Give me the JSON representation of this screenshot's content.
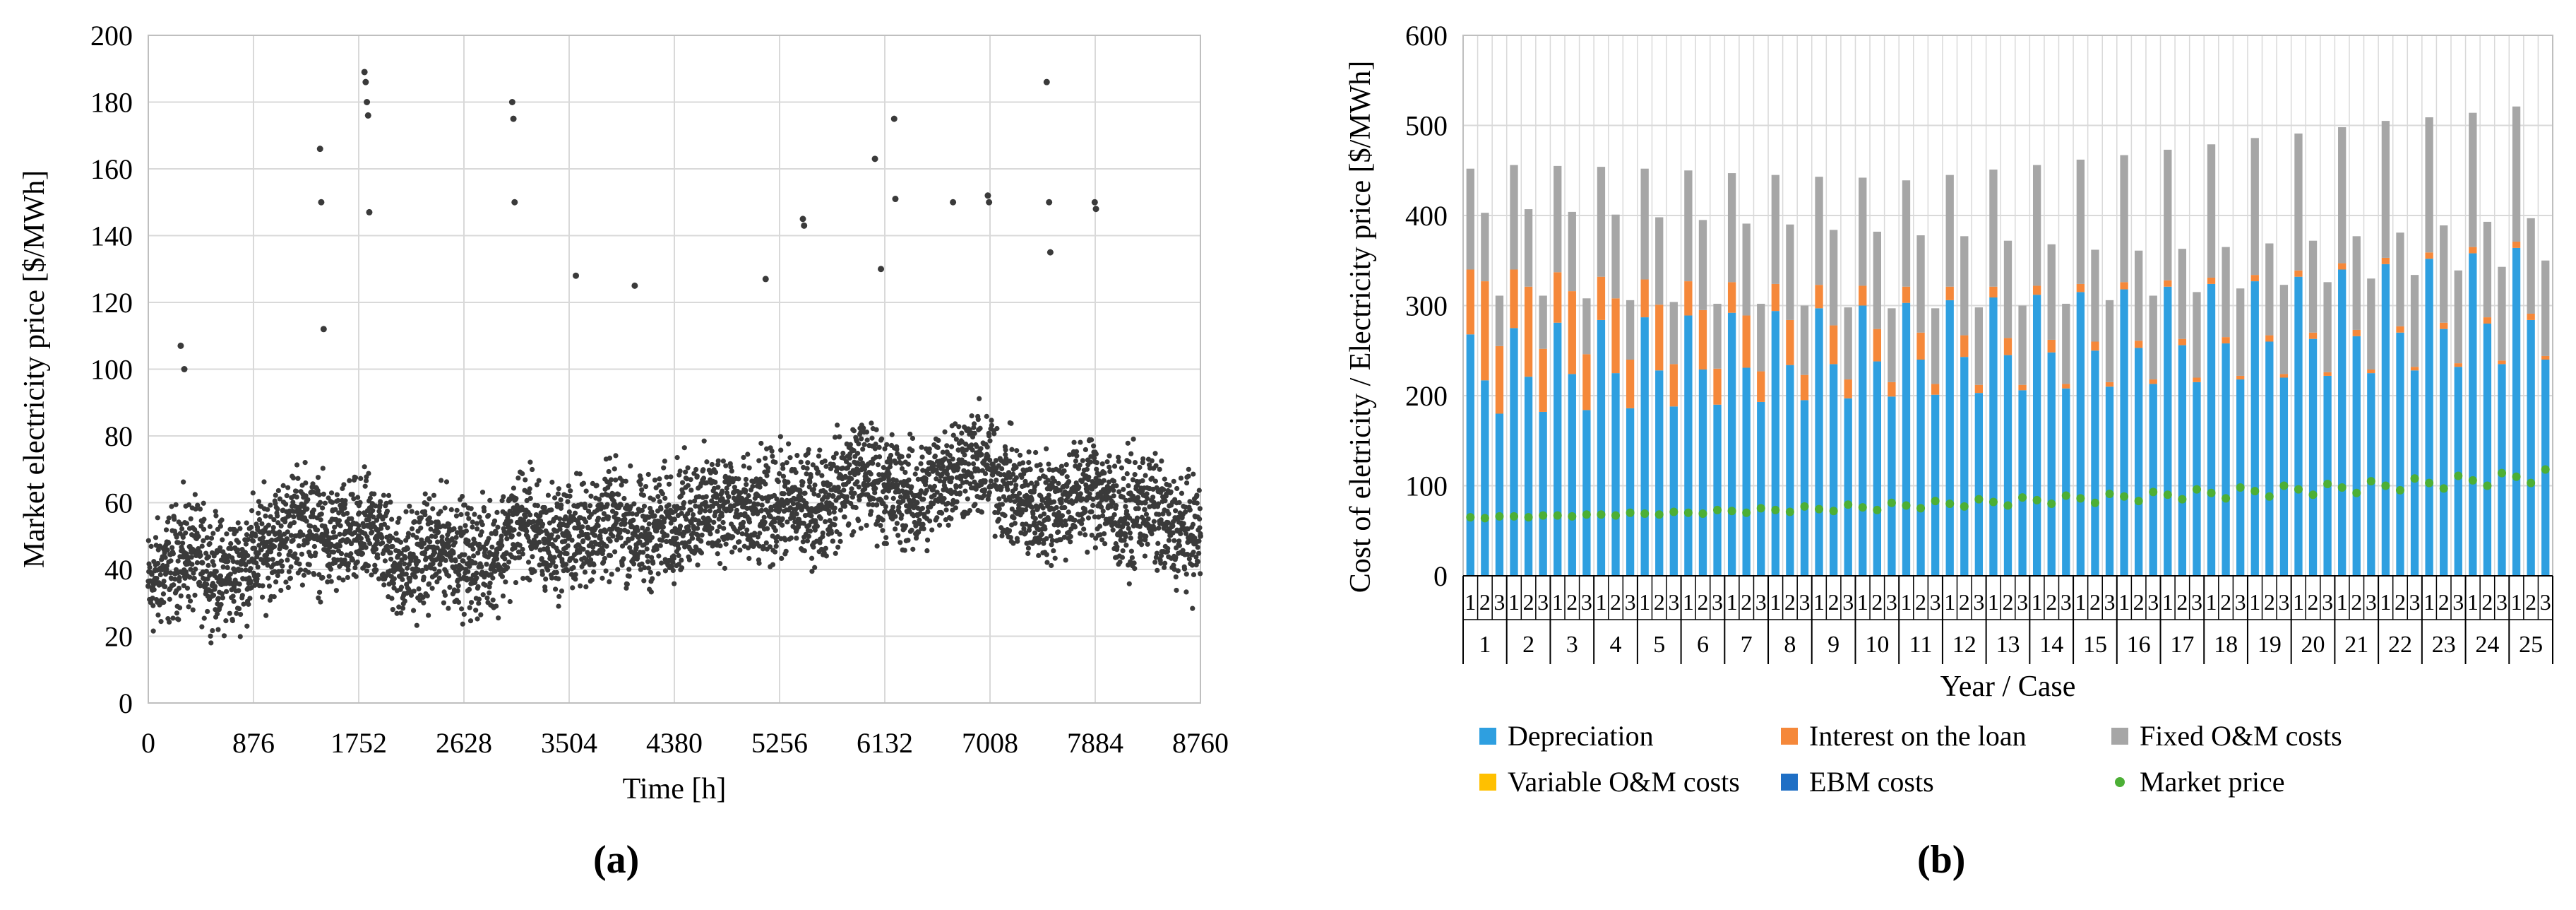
{
  "chart_data": [
    {
      "type": "scatter",
      "panel_label": "(a)",
      "xlabel": "Time [h]",
      "ylabel": "Market electricity price [$/MWh]",
      "xlim": [
        0,
        8760
      ],
      "ylim": [
        0,
        200
      ],
      "x_ticks": [
        0,
        876,
        1752,
        2628,
        3504,
        4380,
        5256,
        6132,
        7008,
        7884,
        8760
      ],
      "y_ticks": [
        0,
        20,
        40,
        60,
        80,
        100,
        120,
        140,
        160,
        180,
        200
      ],
      "grid": true,
      "point_color": "#3a3a3a",
      "sampled_points": {
        "x": [
          0,
          150,
          300,
          450,
          600,
          750,
          900,
          1100,
          1300,
          1500,
          1752,
          1900,
          2100,
          2300,
          2500,
          2700,
          2900,
          3100,
          3300,
          3504,
          3700,
          3900,
          4100,
          4380,
          4600,
          4800,
          5000,
          5256,
          5500,
          5700,
          5900,
          6132,
          6400,
          6600,
          6800,
          7008,
          7200,
          7400,
          7600,
          7884,
          8100,
          8300,
          8500,
          8760
        ],
        "y": [
          35,
          40,
          45,
          42,
          38,
          40,
          45,
          50,
          55,
          48,
          50,
          52,
          40,
          45,
          47,
          42,
          45,
          55,
          48,
          50,
          52,
          55,
          50,
          55,
          58,
          60,
          55,
          60,
          58,
          62,
          70,
          65,
          60,
          68,
          72,
          70,
          62,
          58,
          60,
          65,
          55,
          60,
          52,
          50
        ]
      },
      "spike_points": {
        "x": [
          270,
          300,
          1430,
          1440,
          1460,
          1800,
          1810,
          1820,
          1830,
          1840,
          3030,
          3040,
          3050,
          3560,
          4050,
          5140,
          5450,
          5460,
          6050,
          6100,
          6210,
          6220,
          6700,
          6990,
          7000,
          7480,
          7500,
          7510,
          7880,
          7890
        ],
        "y": [
          107,
          100,
          166,
          150,
          112,
          189,
          186,
          180,
          176,
          147,
          180,
          175,
          150,
          128,
          125,
          127,
          145,
          143,
          163,
          130,
          175,
          151,
          150,
          152,
          150,
          186,
          150,
          135,
          150,
          148
        ]
      }
    },
    {
      "type": "bar",
      "stacked": true,
      "panel_label": "(b)",
      "xlabel": "Year / Case",
      "ylabel": "Cost of eletricity / Electricity price [$/MWh]",
      "ylim": [
        0,
        600
      ],
      "y_ticks": [
        0,
        100,
        200,
        300,
        400,
        500,
        600
      ],
      "grid": true,
      "years": [
        "1",
        "2",
        "3",
        "4",
        "5",
        "6",
        "7",
        "8",
        "9",
        "10",
        "11",
        "12",
        "13",
        "14",
        "15",
        "16",
        "17",
        "18",
        "19",
        "20",
        "21",
        "22",
        "23",
        "24",
        "25"
      ],
      "cases": [
        "1",
        "2",
        "3"
      ],
      "series": [
        {
          "name": "Depreciation",
          "color": "#2e9fe0",
          "case1": [
            268,
            275,
            281,
            284,
            287,
            289,
            292,
            294,
            297,
            300,
            303,
            306,
            309,
            312,
            315,
            318,
            321,
            324,
            327,
            332,
            340,
            346,
            352,
            358,
            364
          ],
          "case2": [
            217,
            221,
            224,
            225,
            228,
            229,
            231,
            234,
            235,
            238,
            240,
            243,
            245,
            248,
            250,
            253,
            256,
            258,
            260,
            263,
            266,
            270,
            274,
            280,
            284
          ],
          "case3": [
            180,
            182,
            184,
            186,
            188,
            190,
            193,
            195,
            197,
            199,
            201,
            203,
            206,
            208,
            210,
            213,
            215,
            218,
            220,
            222,
            225,
            228,
            232,
            235,
            240
          ]
        },
        {
          "name": "Interest on the loan",
          "color": "#f5883a",
          "case1": [
            72,
            65,
            56,
            48,
            42,
            38,
            34,
            30,
            26,
            22,
            18,
            15,
            12,
            10,
            9,
            8,
            7,
            7,
            7,
            7,
            7,
            7,
            7,
            7,
            7
          ],
          "case2": [
            110,
            100,
            92,
            83,
            73,
            66,
            58,
            50,
            43,
            36,
            30,
            24,
            19,
            14,
            10,
            8,
            7,
            7,
            7,
            7,
            7,
            7,
            7,
            7,
            7
          ],
          "case3": [
            75,
            70,
            62,
            54,
            47,
            40,
            34,
            28,
            21,
            16,
            12,
            9,
            6,
            5,
            5,
            5,
            5,
            4,
            4,
            4,
            4,
            4,
            4,
            4,
            4
          ]
        },
        {
          "name": "Fixed O&M costs",
          "color": "#a6a6a6",
          "case1": [
            112,
            116,
            118,
            122,
            123,
            123,
            121,
            121,
            120,
            120,
            118,
            124,
            130,
            134,
            138,
            141,
            145,
            148,
            152,
            152,
            151,
            152,
            150,
            149,
            150
          ],
          "case2": [
            76,
            86,
            88,
            93,
            97,
            100,
            102,
            106,
            106,
            108,
            108,
            110,
            108,
            106,
            102,
            100,
            100,
            100,
            102,
            102,
            104,
            104,
            108,
            106,
            106
          ],
          "case3": [
            56,
            59,
            62,
            66,
            69,
            72,
            75,
            77,
            80,
            82,
            84,
            86,
            88,
            89,
            91,
            93,
            95,
            97,
            99,
            100,
            101,
            102,
            103,
            104,
            106
          ]
        },
        {
          "name": "Variable O&M costs",
          "color": "#ffc000",
          "case1": [
            0,
            0,
            0,
            0,
            0,
            0,
            0,
            0,
            0,
            0,
            0,
            0,
            0,
            0,
            0,
            0,
            0,
            0,
            0,
            0,
            0,
            0,
            0,
            0,
            0
          ],
          "case2": [
            0,
            0,
            0,
            0,
            0,
            0,
            0,
            0,
            0,
            0,
            0,
            0,
            0,
            0,
            0,
            0,
            0,
            0,
            0,
            0,
            0,
            0,
            0,
            0,
            0
          ],
          "case3": [
            0,
            0,
            0,
            0,
            0,
            0,
            0,
            0,
            0,
            0,
            0,
            0,
            0,
            0,
            0,
            0,
            0,
            0,
            0,
            0,
            0,
            0,
            0,
            0,
            0
          ]
        },
        {
          "name": "EBM costs",
          "color": "#1f6fc5",
          "case1": [
            0,
            0,
            0,
            0,
            0,
            0,
            0,
            0,
            0,
            0,
            0,
            0,
            0,
            0,
            0,
            0,
            0,
            0,
            0,
            0,
            0,
            0,
            0,
            0,
            0
          ],
          "case2": [
            0,
            0,
            0,
            0,
            0,
            0,
            0,
            0,
            0,
            0,
            0,
            0,
            0,
            0,
            0,
            0,
            0,
            0,
            0,
            0,
            0,
            0,
            0,
            0,
            0
          ],
          "case3": [
            0,
            0,
            0,
            0,
            0,
            0,
            0,
            0,
            0,
            0,
            0,
            0,
            0,
            0,
            0,
            0,
            0,
            0,
            0,
            0,
            0,
            0,
            0,
            0,
            0
          ]
        }
      ],
      "market_price": {
        "name": "Market price",
        "color": "#4caf35",
        "case1": [
          65,
          66,
          67,
          68,
          69,
          70,
          72,
          73,
          74,
          76,
          78,
          80,
          82,
          84,
          86,
          88,
          90,
          92,
          94,
          96,
          98,
          100,
          103,
          106,
          110
        ],
        "case2": [
          64,
          65,
          66,
          67,
          68,
          69,
          70,
          71,
          72,
          73,
          75,
          77,
          78,
          80,
          81,
          83,
          85,
          86,
          88,
          90,
          92,
          95,
          97,
          100,
          103
        ],
        "case3": [
          66,
          67,
          68,
          70,
          71,
          73,
          75,
          77,
          79,
          81,
          83,
          85,
          87,
          89,
          91,
          93,
          96,
          98,
          100,
          102,
          105,
          108,
          111,
          114,
          118
        ]
      },
      "legend": {
        "placement": "bottom",
        "entries": [
          {
            "label": "Depreciation",
            "color": "#2e9fe0",
            "marker": "square"
          },
          {
            "label": "Interest on the loan",
            "color": "#f5883a",
            "marker": "square"
          },
          {
            "label": "Fixed O&M costs",
            "color": "#a6a6a6",
            "marker": "square"
          },
          {
            "label": "Variable O&M costs",
            "color": "#ffc000",
            "marker": "square"
          },
          {
            "label": "EBM costs",
            "color": "#1f6fc5",
            "marker": "square"
          },
          {
            "label": "Market price",
            "color": "#4caf35",
            "marker": "dot"
          }
        ]
      }
    }
  ]
}
